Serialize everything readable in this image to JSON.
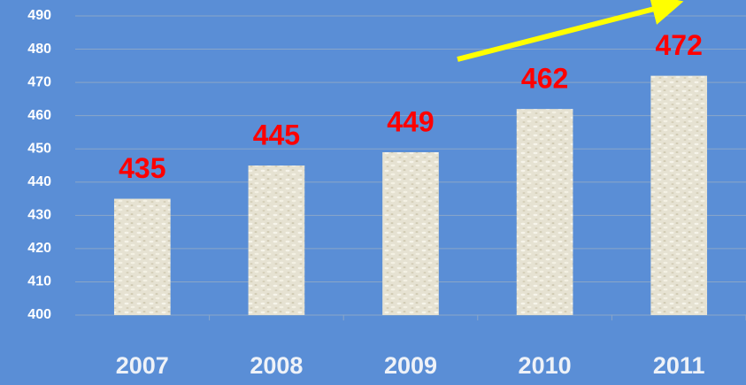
{
  "chart_data": {
    "type": "bar",
    "categories": [
      "2007",
      "2008",
      "2009",
      "2010",
      "2011"
    ],
    "values": [
      435,
      445,
      449,
      462,
      472
    ],
    "color": "#e3dfce",
    "label_color": "#ff0000",
    "ylim": [
      400,
      490
    ],
    "yticks": [
      400,
      410,
      420,
      430,
      440,
      450,
      460,
      470,
      480,
      490
    ],
    "grid": true
  }
}
